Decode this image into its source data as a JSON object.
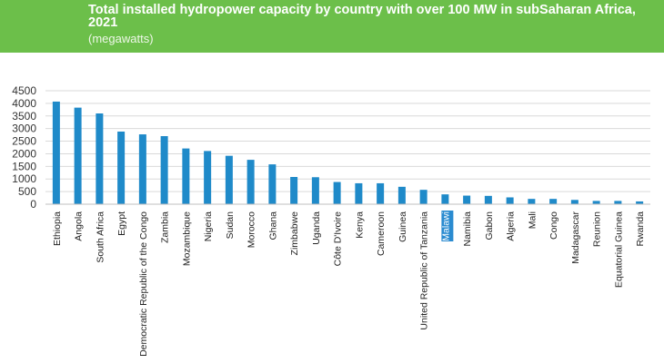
{
  "header": {
    "title": "Total installed hydropower capacity by country with over 100 MW in subSaharan Africa, 2021",
    "subtitle": "(megawatts)"
  },
  "colors": {
    "header_bg": "#6cbf4a",
    "bar": "#1f8ac9",
    "highlight_bg": "#2a8bd0"
  },
  "chart_data": {
    "type": "bar",
    "title": "Total installed hydropower capacity by country with over 100 MW in subSaharan Africa, 2021",
    "subtitle": "(megawatts)",
    "xlabel": "",
    "ylabel": "",
    "ylim": [
      0,
      4500
    ],
    "yticks": [
      0,
      500,
      1000,
      1500,
      2000,
      2500,
      3000,
      3500,
      4000,
      4500
    ],
    "grid": true,
    "highlight": "Malawi",
    "categories": [
      "Ethiopia",
      "Angola",
      "South Africa",
      "Egypt",
      "Democratic Republic of the Congo",
      "Zambia",
      "Mozambique",
      "Nigeria",
      "Sudan",
      "Morocco",
      "Ghana",
      "Zimbabwe",
      "Uganda",
      "Côte D'Ivoire",
      "Kenya",
      "Cameroon",
      "Guinea",
      "United Republic of Tanzania",
      "Malawi",
      "Namibia",
      "Gabon",
      "Algeria",
      "Mali",
      "Congo",
      "Madagascar",
      "Reunion",
      "Equatorial Guinea",
      "Rwanda"
    ],
    "values": [
      4070,
      3830,
      3600,
      2880,
      2770,
      2700,
      2210,
      2110,
      1920,
      1760,
      1580,
      1080,
      1070,
      880,
      830,
      830,
      690,
      570,
      390,
      340,
      330,
      270,
      210,
      210,
      170,
      130,
      130,
      110
    ]
  }
}
